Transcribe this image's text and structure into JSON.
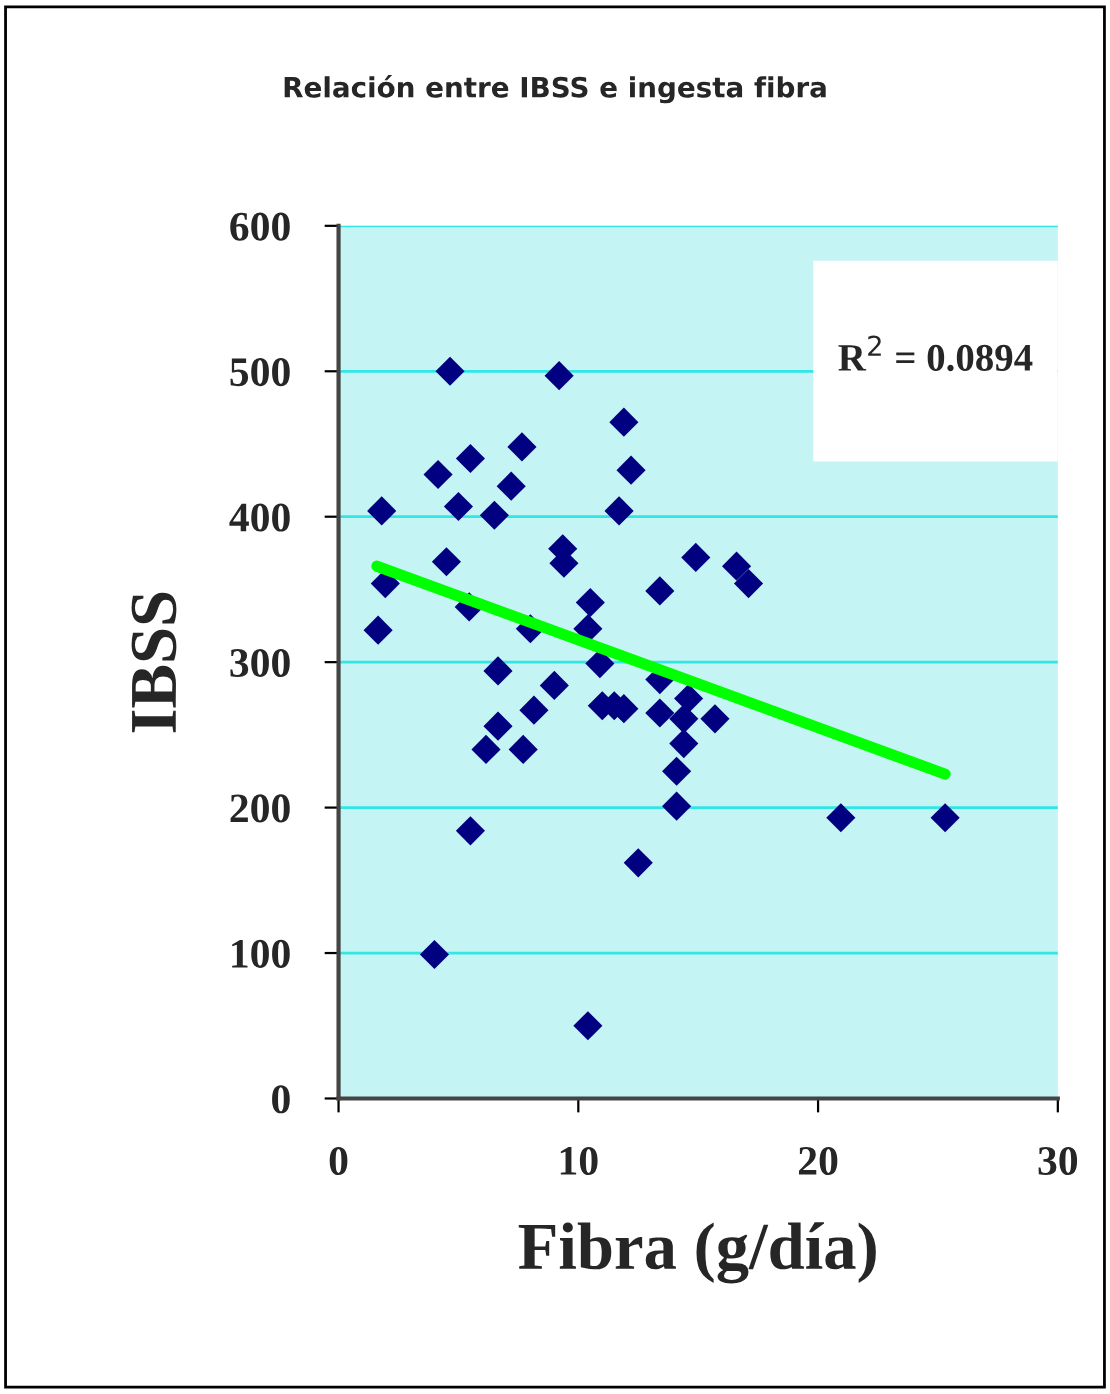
{
  "chart_data": {
    "type": "scatter",
    "title": "Relación entre IBSS e ingesta fibra",
    "xlabel": "Fibra (g/día)",
    "ylabel": "IBSS",
    "series": [
      {
        "color": "#000080",
        "marker": "diamond",
        "x": [
          4.65,
          9.2,
          11.9,
          12.2,
          11.7,
          7.65,
          5.5,
          4.15,
          7.2,
          5.0,
          6.5,
          1.8,
          9.35,
          9.4,
          4.5,
          14.9,
          13.4,
          1.95,
          10.5,
          5.45,
          8.0,
          10.4,
          1.65,
          10.9,
          6.65,
          9.0,
          13.4,
          14.6,
          11.0,
          11.5,
          11.9,
          13.4,
          14.4,
          15.7,
          8.15,
          6.65,
          16.6,
          17.1,
          14.4,
          14.1,
          14.1,
          12.5,
          20.95,
          25.3,
          6.15,
          7.7,
          5.5,
          4.0,
          10.4
        ],
        "values": [
          500,
          497,
          465,
          432,
          404,
          448,
          440,
          429,
          421,
          407,
          401,
          404,
          378,
          368,
          369,
          372,
          349,
          354,
          341,
          338,
          323,
          323,
          322,
          299,
          294,
          284,
          288,
          275,
          270,
          270,
          268,
          265,
          261,
          261,
          267,
          256,
          366,
          354,
          244,
          225,
          201,
          162,
          193,
          193,
          240,
          240,
          184,
          99,
          50
        ]
      },
      {
        "type": "line",
        "color": "#00ff00",
        "x": [
          1.6,
          25.3
        ],
        "values": [
          366,
          223
        ]
      }
    ],
    "xlim": [
      0,
      30
    ],
    "xticks": [
      0,
      10,
      20,
      30
    ],
    "ylim": [
      0,
      600
    ],
    "yticks": [
      0,
      100,
      200,
      300,
      400,
      500,
      600
    ],
    "grid": "y",
    "annotations": [
      "R$^{2}$ = 0.0894"
    ]
  }
}
